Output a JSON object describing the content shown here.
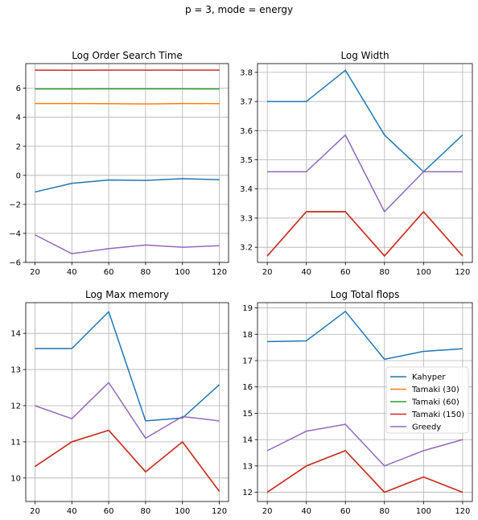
{
  "suptitle": "p = 3, mode = energy",
  "legend": {
    "entries": [
      {
        "name": "Kahyper",
        "color": "#1f77b4"
      },
      {
        "name": "Tamaki (30)",
        "color": "#ff7f0e"
      },
      {
        "name": "Tamaki (60)",
        "color": "#2ca02c"
      },
      {
        "name": "Tamaki (150)",
        "color": "#d62728"
      },
      {
        "name": "Greedy",
        "color": "#9467bd"
      }
    ]
  },
  "chart_data": [
    {
      "type": "line",
      "title": "Log Order Search Time",
      "x": [
        20,
        40,
        60,
        80,
        100,
        120
      ],
      "xticks": [
        20,
        40,
        60,
        80,
        100,
        120
      ],
      "yticks": [
        -6,
        -4,
        -2,
        0,
        2,
        4,
        6
      ],
      "ylim": [
        -6,
        7.7
      ],
      "grid": true,
      "series": [
        {
          "name": "Kahyper",
          "values": [
            -1.15,
            -0.55,
            -0.32,
            -0.35,
            -0.23,
            -0.3
          ]
        },
        {
          "name": "Tamaki (30)",
          "values": [
            4.95,
            4.95,
            4.94,
            4.92,
            4.95,
            4.94
          ]
        },
        {
          "name": "Tamaki (60)",
          "values": [
            5.95,
            5.95,
            5.96,
            5.96,
            5.96,
            5.95
          ]
        },
        {
          "name": "Tamaki (150)",
          "values": [
            7.25,
            7.24,
            7.25,
            7.25,
            7.25,
            7.25
          ]
        },
        {
          "name": "Greedy",
          "values": [
            -4.1,
            -5.4,
            -5.05,
            -4.8,
            -4.95,
            -4.85
          ]
        }
      ]
    },
    {
      "type": "line",
      "title": "Log Width",
      "x": [
        20,
        40,
        60,
        80,
        100,
        120
      ],
      "xticks": [
        20,
        40,
        60,
        80,
        100,
        120
      ],
      "yticks": [
        3.2,
        3.3,
        3.4,
        3.5,
        3.6,
        3.7,
        3.8
      ],
      "ylim": [
        3.148,
        3.83
      ],
      "grid": true,
      "series": [
        {
          "name": "Kahyper",
          "values": [
            3.7,
            3.7,
            3.807,
            3.585,
            3.459,
            3.585
          ]
        },
        {
          "name": "Tamaki (30)",
          "values": [
            3.17,
            3.322,
            3.322,
            3.17,
            3.322,
            3.17
          ]
        },
        {
          "name": "Tamaki (60)",
          "values": [
            3.17,
            3.322,
            3.322,
            3.17,
            3.322,
            3.17
          ]
        },
        {
          "name": "Tamaki (150)",
          "values": [
            3.17,
            3.322,
            3.322,
            3.17,
            3.322,
            3.17
          ]
        },
        {
          "name": "Greedy",
          "values": [
            3.459,
            3.459,
            3.585,
            3.322,
            3.459,
            3.459
          ]
        }
      ]
    },
    {
      "type": "line",
      "title": "Log Max memory",
      "x": [
        20,
        40,
        60,
        80,
        100,
        120
      ],
      "xticks": [
        20,
        40,
        60,
        80,
        100,
        120
      ],
      "yticks": [
        10,
        11,
        12,
        13,
        14
      ],
      "ylim": [
        9.35,
        14.85
      ],
      "grid": true,
      "series": [
        {
          "name": "Kahyper",
          "values": [
            13.58,
            13.58,
            14.6,
            11.58,
            11.66,
            12.58
          ]
        },
        {
          "name": "Tamaki (30)",
          "values": [
            10.32,
            11.0,
            11.32,
            10.17,
            11.0,
            9.63
          ]
        },
        {
          "name": "Tamaki (60)",
          "values": [
            10.32,
            11.0,
            11.32,
            10.17,
            11.0,
            9.63
          ]
        },
        {
          "name": "Tamaki (150)",
          "values": [
            10.32,
            11.0,
            11.32,
            10.17,
            11.0,
            9.63
          ]
        },
        {
          "name": "Greedy",
          "values": [
            12.0,
            11.64,
            12.64,
            11.1,
            11.7,
            11.58
          ]
        }
      ]
    },
    {
      "type": "line",
      "title": "Log Total flops",
      "x": [
        20,
        40,
        60,
        80,
        100,
        120
      ],
      "xticks": [
        20,
        40,
        60,
        80,
        100,
        120
      ],
      "yticks": [
        12,
        13,
        14,
        15,
        16,
        17,
        18,
        19
      ],
      "ylim": [
        11.65,
        19.2
      ],
      "grid": true,
      "series": [
        {
          "name": "Kahyper",
          "values": [
            17.72,
            17.75,
            18.87,
            17.05,
            17.35,
            17.45
          ]
        },
        {
          "name": "Tamaki (30)",
          "values": [
            12.0,
            13.0,
            13.58,
            12.0,
            12.58,
            12.0
          ]
        },
        {
          "name": "Tamaki (60)",
          "values": [
            12.0,
            13.0,
            13.58,
            12.0,
            12.58,
            12.0
          ]
        },
        {
          "name": "Tamaki (150)",
          "values": [
            12.0,
            13.0,
            13.58,
            12.0,
            12.58,
            12.0
          ]
        },
        {
          "name": "Greedy",
          "values": [
            13.58,
            14.32,
            14.58,
            13.0,
            13.58,
            14.0
          ]
        }
      ]
    }
  ]
}
